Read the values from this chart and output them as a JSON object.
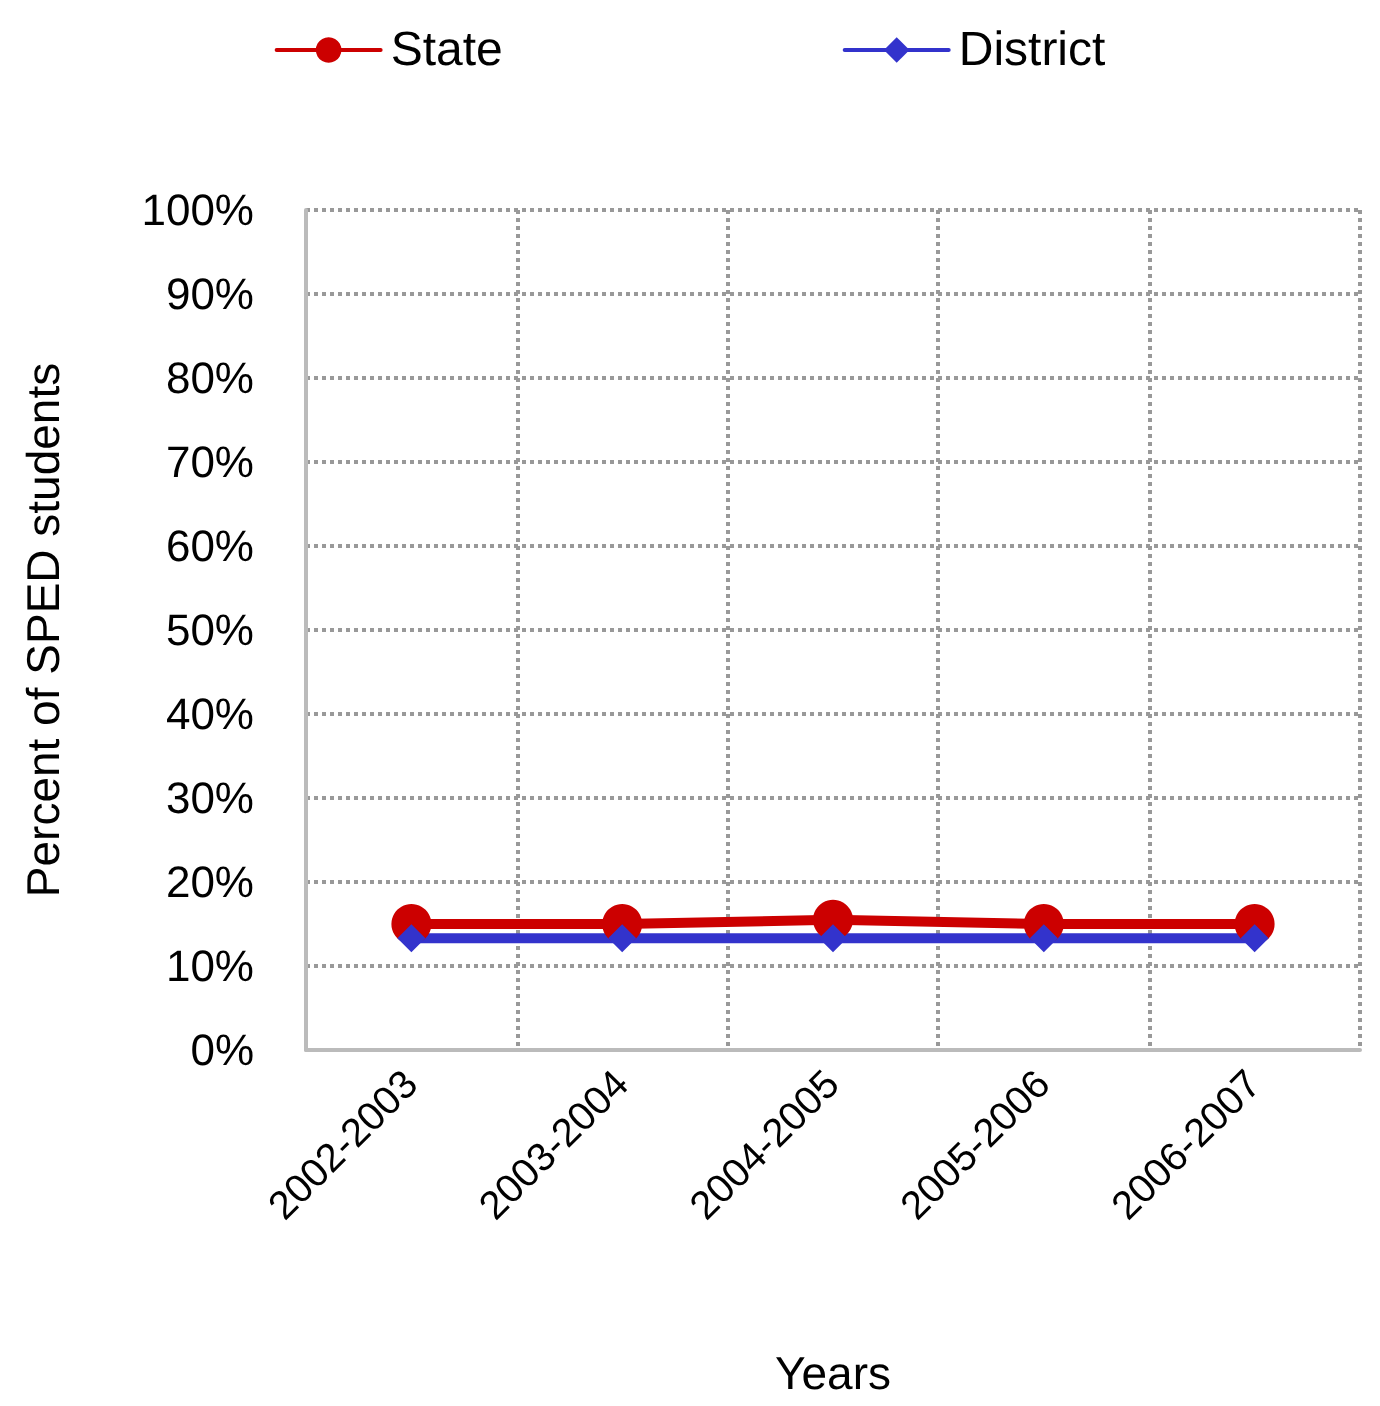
{
  "chart_data": {
    "type": "line",
    "xlabel": "Years",
    "ylabel": "Percent of SPED students",
    "categories": [
      "2002-2003",
      "2003-2004",
      "2004-2005",
      "2005-2006",
      "2006-2007"
    ],
    "series": [
      {
        "name": "State",
        "color": "#cc0000",
        "marker": "circle",
        "values": [
          15,
          15,
          15.5,
          15,
          15
        ]
      },
      {
        "name": "District",
        "color": "#3333cc",
        "marker": "diamond",
        "values": [
          13.3,
          13.3,
          13.3,
          13.3,
          13.3
        ]
      }
    ],
    "ylim": [
      0,
      100
    ],
    "yticks": [
      {
        "value": 0,
        "label": "0%"
      },
      {
        "value": 10,
        "label": "10%"
      },
      {
        "value": 20,
        "label": "20%"
      },
      {
        "value": 30,
        "label": "30%"
      },
      {
        "value": 40,
        "label": "40%"
      },
      {
        "value": 50,
        "label": "50%"
      },
      {
        "value": 60,
        "label": "60%"
      },
      {
        "value": 70,
        "label": "70%"
      },
      {
        "value": 80,
        "label": "80%"
      },
      {
        "value": 90,
        "label": "90%"
      },
      {
        "value": 100,
        "label": "100%"
      }
    ],
    "grid": true,
    "legend": "top",
    "line_style": "solid"
  }
}
